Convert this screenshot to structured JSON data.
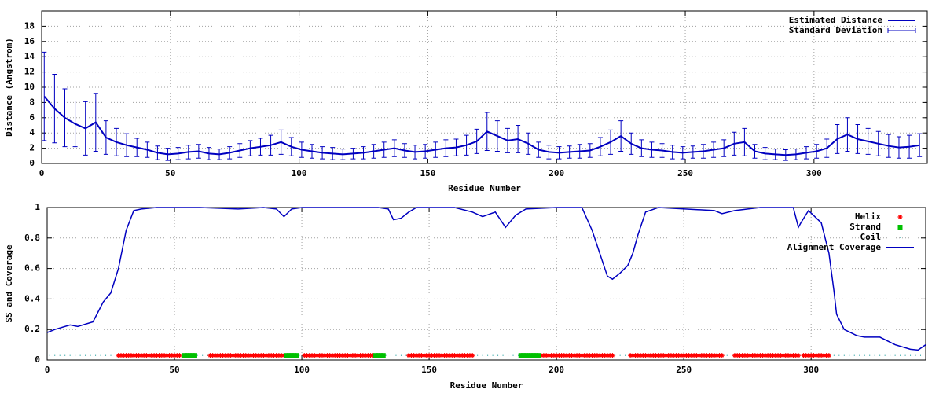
{
  "chart_data": [
    {
      "type": "errorbar",
      "xlabel": "Residue Number",
      "ylabel": "Distance (Angstrom)",
      "x": [
        1,
        5,
        9,
        13,
        17,
        21,
        25,
        29,
        33,
        37,
        41,
        45,
        49,
        53,
        57,
        61,
        65,
        69,
        73,
        77,
        81,
        85,
        89,
        93,
        97,
        101,
        105,
        109,
        113,
        117,
        121,
        125,
        129,
        133,
        137,
        141,
        145,
        149,
        153,
        157,
        161,
        165,
        169,
        173,
        177,
        181,
        185,
        189,
        193,
        197,
        201,
        205,
        209,
        213,
        217,
        221,
        225,
        229,
        233,
        237,
        241,
        245,
        249,
        253,
        257,
        261,
        265,
        269,
        273,
        277,
        281,
        285,
        289,
        293,
        297,
        301,
        305,
        309,
        313,
        317,
        321,
        325,
        329,
        333,
        337,
        341
      ],
      "series": [
        {
          "name": "Estimated Distance",
          "color": "#0000c0",
          "values": [
            8.8,
            7.2,
            6.0,
            5.2,
            4.6,
            5.4,
            3.4,
            2.8,
            2.4,
            2.1,
            1.8,
            1.4,
            1.2,
            1.3,
            1.5,
            1.6,
            1.3,
            1.2,
            1.4,
            1.7,
            2.0,
            2.2,
            2.4,
            2.8,
            2.2,
            1.8,
            1.6,
            1.4,
            1.3,
            1.2,
            1.3,
            1.4,
            1.6,
            1.8,
            2.0,
            1.7,
            1.5,
            1.6,
            1.8,
            2.0,
            2.1,
            2.4,
            2.9,
            4.2,
            3.6,
            3.0,
            3.2,
            2.6,
            1.8,
            1.5,
            1.4,
            1.5,
            1.6,
            1.7,
            2.2,
            2.8,
            3.6,
            2.6,
            2.0,
            1.8,
            1.7,
            1.5,
            1.4,
            1.5,
            1.6,
            1.8,
            2.0,
            2.6,
            2.8,
            1.6,
            1.3,
            1.2,
            1.1,
            1.2,
            1.4,
            1.6,
            2.0,
            3.2,
            3.8,
            3.2,
            2.9,
            2.6,
            2.3,
            2.1,
            2.2,
            2.4
          ]
        }
      ],
      "error_bars": {
        "name": "Standard Deviation",
        "color": "#0000c0",
        "values": [
          5.8,
          4.5,
          3.8,
          3,
          3.5,
          3.8,
          2.2,
          1.8,
          1.5,
          1.2,
          1,
          0.9,
          0.8,
          0.8,
          0.9,
          0.9,
          0.8,
          0.7,
          0.8,
          0.9,
          1,
          1.1,
          1.3,
          1.6,
          1.2,
          1,
          0.9,
          0.8,
          0.8,
          0.7,
          0.7,
          0.8,
          0.9,
          1,
          1.1,
          0.9,
          0.9,
          0.9,
          1,
          1.1,
          1.1,
          1.3,
          1.6,
          2.5,
          2,
          1.6,
          1.8,
          1.4,
          1,
          0.9,
          0.8,
          0.8,
          0.9,
          0.9,
          1.2,
          1.6,
          2,
          1.4,
          1.1,
          1,
          0.9,
          0.9,
          0.8,
          0.8,
          0.9,
          1,
          1.1,
          1.5,
          1.8,
          0.9,
          0.8,
          0.7,
          0.7,
          0.7,
          0.8,
          0.9,
          1.2,
          1.9,
          2.2,
          1.9,
          1.7,
          1.6,
          1.5,
          1.4,
          1.5,
          1.5
        ]
      },
      "xlim": [
        0,
        344
      ],
      "ylim": [
        0,
        20
      ],
      "xticks": [
        0,
        50,
        100,
        150,
        200,
        250,
        300
      ],
      "yticks": [
        0,
        2,
        4,
        6,
        8,
        10,
        12,
        14,
        16,
        18
      ],
      "grid": true,
      "legend": "top-right"
    },
    {
      "type": "line",
      "xlabel": "Residue Number",
      "ylabel": "SS and Coverage",
      "series": [
        {
          "name": "Helix",
          "color": "#ff0000",
          "marker": "star",
          "y": 0.03,
          "ranges": [
            [
              28,
              52
            ],
            [
              64,
              93
            ],
            [
              101,
              128
            ],
            [
              142,
              167
            ],
            [
              194,
              222
            ],
            [
              229,
              265
            ],
            [
              270,
              295
            ],
            [
              297,
              307
            ]
          ]
        },
        {
          "name": "Strand",
          "color": "#00c000",
          "marker": "square",
          "y": 0.03,
          "ranges": [
            [
              54,
              58
            ],
            [
              94,
              98
            ],
            [
              129,
              132
            ],
            [
              186,
              193
            ]
          ]
        },
        {
          "name": "Coil",
          "color": "#009090",
          "marker": "dot",
          "y": 0.03,
          "ranges": [
            [
              1,
              343
            ]
          ]
        },
        {
          "name": "Alignment Coverage",
          "color": "#0000c0",
          "marker": "line",
          "x": [
            0,
            3,
            9,
            12,
            18,
            22,
            25,
            28,
            31,
            34,
            37,
            43,
            60,
            75,
            85,
            90,
            93,
            96,
            100,
            120,
            130,
            134,
            136,
            139,
            142,
            145,
            160,
            167,
            171,
            176,
            180,
            184,
            188,
            200,
            210,
            214,
            217,
            220,
            222,
            225,
            228,
            230,
            232,
            235,
            240,
            262,
            265,
            270,
            280,
            293,
            295,
            296,
            299,
            304,
            307,
            309,
            310,
            313,
            318,
            321,
            327,
            333,
            339,
            342,
            345
          ],
          "values": [
            0.18,
            0.2,
            0.23,
            0.22,
            0.25,
            0.38,
            0.44,
            0.6,
            0.85,
            0.98,
            0.99,
            1.0,
            1.0,
            0.99,
            1.0,
            0.99,
            0.94,
            0.99,
            1.0,
            1.0,
            1.0,
            0.99,
            0.92,
            0.93,
            0.97,
            1.0,
            1.0,
            0.97,
            0.94,
            0.97,
            0.87,
            0.95,
            0.99,
            1.0,
            1.0,
            0.85,
            0.7,
            0.55,
            0.53,
            0.57,
            0.62,
            0.7,
            0.82,
            0.97,
            1.0,
            0.98,
            0.96,
            0.98,
            1.0,
            1.0,
            0.87,
            0.9,
            0.98,
            0.9,
            0.7,
            0.45,
            0.3,
            0.2,
            0.16,
            0.15,
            0.15,
            0.1,
            0.07,
            0.065,
            0.1
          ]
        }
      ],
      "xlim": [
        0,
        345
      ],
      "ylim": [
        0,
        1
      ],
      "xticks": [
        0,
        50,
        100,
        150,
        200,
        250,
        300
      ],
      "yticks": [
        0,
        0.2,
        0.4,
        0.6,
        0.8,
        1
      ],
      "grid": true,
      "legend": "top-right"
    }
  ]
}
